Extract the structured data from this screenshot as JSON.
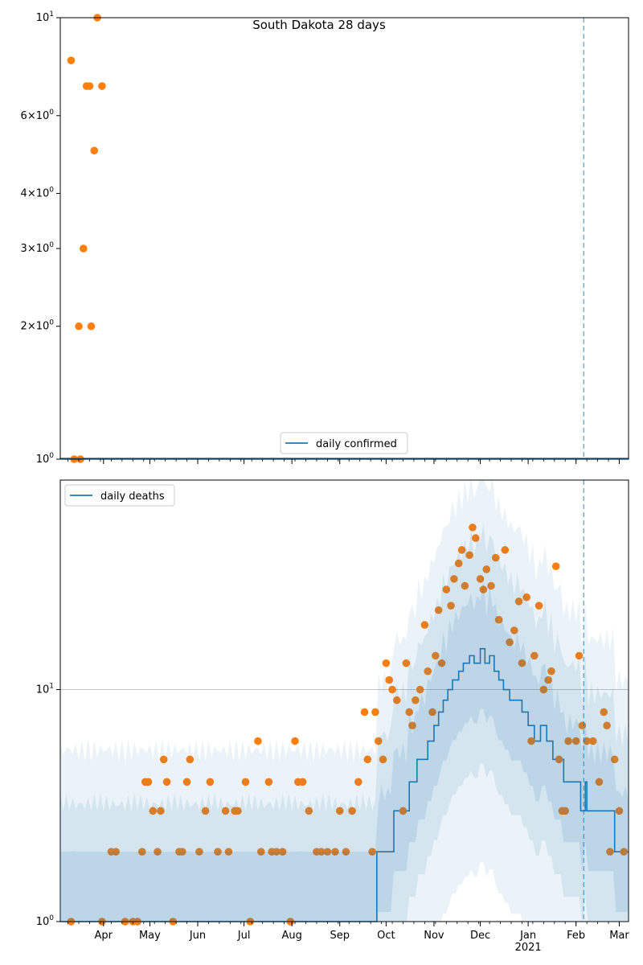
{
  "chart_data": [
    {
      "type": "scatter",
      "title": "South Dakota 28 days",
      "yscale": "log",
      "ylim": [
        1,
        10
      ],
      "x_range": [
        "2020-03-04",
        "2021-03-07"
      ],
      "ytick_labels": [
        {
          "value": 1,
          "base": "10",
          "exp": "0"
        },
        {
          "value": 2,
          "base": "2×10",
          "exp": "0"
        },
        {
          "value": 3,
          "base": "3×10",
          "exp": "0"
        },
        {
          "value": 4,
          "base": "4×10",
          "exp": "0"
        },
        {
          "value": 6,
          "base": "6×10",
          "exp": "0"
        },
        {
          "value": 10,
          "base": "10",
          "exp": "1"
        }
      ],
      "legend": {
        "label": "daily confirmed",
        "placement": "lower-center"
      },
      "reference_line_date": "2021-02-06",
      "series": [
        {
          "role": "observed",
          "color": "#ff7f0e",
          "points": [
            [
              "2020-03-11",
              8
            ],
            [
              "2020-03-13",
              1
            ],
            [
              "2020-03-16",
              2
            ],
            [
              "2020-03-17",
              1
            ],
            [
              "2020-03-19",
              3
            ],
            [
              "2020-03-21",
              7
            ],
            [
              "2020-03-23",
              7
            ],
            [
              "2020-03-24",
              2
            ],
            [
              "2020-03-26",
              5
            ],
            [
              "2020-03-28",
              10
            ],
            [
              "2020-03-31",
              7
            ]
          ]
        }
      ]
    },
    {
      "type": "line",
      "yscale": "log",
      "ylim": [
        1,
        80
      ],
      "x_range": [
        "2020-03-04",
        "2021-03-07"
      ],
      "ytick_labels": [
        {
          "value": 1,
          "base": "10",
          "exp": "0"
        },
        {
          "value": 10,
          "base": "10",
          "exp": "1"
        }
      ],
      "grid": "major horizontal",
      "legend": {
        "label": "daily deaths",
        "placement": "upper-left"
      },
      "reference_line_date": "2021-02-06",
      "xtick_labels": [
        {
          "date": "2020-04-01",
          "label": "Apr"
        },
        {
          "date": "2020-05-01",
          "label": "May"
        },
        {
          "date": "2020-06-01",
          "label": "Jun"
        },
        {
          "date": "2020-07-01",
          "label": "Jul"
        },
        {
          "date": "2020-08-01",
          "label": "Aug"
        },
        {
          "date": "2020-09-01",
          "label": "Sep"
        },
        {
          "date": "2020-10-01",
          "label": "Oct"
        },
        {
          "date": "2020-11-01",
          "label": "Nov"
        },
        {
          "date": "2020-12-01",
          "label": "Dec"
        },
        {
          "date": "2021-01-01",
          "label": "Jan",
          "sub": "2021"
        },
        {
          "date": "2021-02-01",
          "label": "Feb"
        },
        {
          "date": "2021-03-01",
          "label": "Mar"
        }
      ],
      "series": [
        {
          "name": "daily deaths",
          "role": "model",
          "color": "#1f77b4",
          "points": [
            [
              "2020-03-04",
              1
            ],
            [
              "2020-09-24",
              1
            ],
            [
              "2020-09-25",
              2
            ],
            [
              "2020-10-05",
              2
            ],
            [
              "2020-10-06",
              3
            ],
            [
              "2020-10-15",
              3
            ],
            [
              "2020-10-16",
              4
            ],
            [
              "2020-10-20",
              4
            ],
            [
              "2020-10-21",
              5
            ],
            [
              "2020-10-25",
              5
            ],
            [
              "2020-10-28",
              6
            ],
            [
              "2020-11-01",
              7
            ],
            [
              "2020-11-04",
              8
            ],
            [
              "2020-11-07",
              9
            ],
            [
              "2020-11-10",
              10
            ],
            [
              "2020-11-13",
              11
            ],
            [
              "2020-11-17",
              12
            ],
            [
              "2020-11-20",
              13
            ],
            [
              "2020-11-24",
              14
            ],
            [
              "2020-11-27",
              13
            ],
            [
              "2020-12-01",
              15
            ],
            [
              "2020-12-04",
              13
            ],
            [
              "2020-12-07",
              14
            ],
            [
              "2020-12-10",
              12
            ],
            [
              "2020-12-13",
              11
            ],
            [
              "2020-12-16",
              10
            ],
            [
              "2020-12-20",
              9
            ],
            [
              "2020-12-24",
              9
            ],
            [
              "2020-12-28",
              8
            ],
            [
              "2021-01-01",
              7
            ],
            [
              "2021-01-05",
              6
            ],
            [
              "2021-01-09",
              7
            ],
            [
              "2021-01-13",
              6
            ],
            [
              "2021-01-17",
              5
            ],
            [
              "2021-01-21",
              5
            ],
            [
              "2021-01-24",
              4
            ],
            [
              "2021-02-03",
              4
            ],
            [
              "2021-02-04",
              3
            ],
            [
              "2021-02-06",
              3
            ],
            [
              "2021-02-07",
              4
            ],
            [
              "2021-02-08",
              3
            ],
            [
              "2021-02-25",
              3
            ],
            [
              "2021-02-26",
              2
            ],
            [
              "2021-03-07",
              2
            ]
          ]
        },
        {
          "role": "observed",
          "color": "#ff7f0e",
          "points": [
            [
              "2020-03-11",
              1
            ],
            [
              "2020-03-31",
              1
            ],
            [
              "2020-04-06",
              2
            ],
            [
              "2020-04-09",
              2
            ],
            [
              "2020-04-15",
              1
            ],
            [
              "2020-04-20",
              1
            ],
            [
              "2020-04-23",
              1
            ],
            [
              "2020-04-26",
              2
            ],
            [
              "2020-04-28",
              4
            ],
            [
              "2020-04-30",
              4
            ],
            [
              "2020-05-03",
              3
            ],
            [
              "2020-05-06",
              2
            ],
            [
              "2020-05-08",
              3
            ],
            [
              "2020-05-10",
              5
            ],
            [
              "2020-05-12",
              4
            ],
            [
              "2020-05-16",
              1
            ],
            [
              "2020-05-20",
              2
            ],
            [
              "2020-05-22",
              2
            ],
            [
              "2020-05-25",
              4
            ],
            [
              "2020-05-27",
              5
            ],
            [
              "2020-06-02",
              2
            ],
            [
              "2020-06-06",
              3
            ],
            [
              "2020-06-09",
              4
            ],
            [
              "2020-06-14",
              2
            ],
            [
              "2020-06-19",
              3
            ],
            [
              "2020-06-21",
              2
            ],
            [
              "2020-06-25",
              3
            ],
            [
              "2020-06-27",
              3
            ],
            [
              "2020-07-02",
              4
            ],
            [
              "2020-07-05",
              1
            ],
            [
              "2020-07-10",
              6
            ],
            [
              "2020-07-12",
              2
            ],
            [
              "2020-07-17",
              4
            ],
            [
              "2020-07-19",
              2
            ],
            [
              "2020-07-22",
              2
            ],
            [
              "2020-07-26",
              2
            ],
            [
              "2020-07-31",
              1
            ],
            [
              "2020-08-03",
              6
            ],
            [
              "2020-08-05",
              4
            ],
            [
              "2020-08-08",
              4
            ],
            [
              "2020-08-12",
              3
            ],
            [
              "2020-08-17",
              2
            ],
            [
              "2020-08-20",
              2
            ],
            [
              "2020-08-24",
              2
            ],
            [
              "2020-08-29",
              2
            ],
            [
              "2020-09-01",
              3
            ],
            [
              "2020-09-05",
              2
            ],
            [
              "2020-09-09",
              3
            ],
            [
              "2020-09-13",
              4
            ],
            [
              "2020-09-17",
              8
            ],
            [
              "2020-09-19",
              5
            ],
            [
              "2020-09-22",
              2
            ],
            [
              "2020-09-24",
              8
            ],
            [
              "2020-09-26",
              6
            ],
            [
              "2020-09-29",
              5
            ],
            [
              "2020-10-01",
              13
            ],
            [
              "2020-10-03",
              11
            ],
            [
              "2020-10-05",
              10
            ],
            [
              "2020-10-08",
              9
            ],
            [
              "2020-10-12",
              3
            ],
            [
              "2020-10-14",
              13
            ],
            [
              "2020-10-16",
              8
            ],
            [
              "2020-10-18",
              7
            ],
            [
              "2020-10-20",
              9
            ],
            [
              "2020-10-23",
              10
            ],
            [
              "2020-10-26",
              19
            ],
            [
              "2020-10-28",
              12
            ],
            [
              "2020-10-31",
              8
            ],
            [
              "2020-11-02",
              14
            ],
            [
              "2020-11-04",
              22
            ],
            [
              "2020-11-06",
              13
            ],
            [
              "2020-11-09",
              27
            ],
            [
              "2020-11-12",
              23
            ],
            [
              "2020-11-14",
              30
            ],
            [
              "2020-11-17",
              35
            ],
            [
              "2020-11-19",
              40
            ],
            [
              "2020-11-21",
              28
            ],
            [
              "2020-11-24",
              38
            ],
            [
              "2020-11-26",
              50
            ],
            [
              "2020-11-28",
              45
            ],
            [
              "2020-12-01",
              30
            ],
            [
              "2020-12-03",
              27
            ],
            [
              "2020-12-05",
              33
            ],
            [
              "2020-12-08",
              28
            ],
            [
              "2020-12-11",
              37
            ],
            [
              "2020-12-13",
              20
            ],
            [
              "2020-12-17",
              40
            ],
            [
              "2020-12-20",
              16
            ],
            [
              "2020-12-23",
              18
            ],
            [
              "2020-12-26",
              24
            ],
            [
              "2020-12-28",
              13
            ],
            [
              "2020-12-31",
              25
            ],
            [
              "2021-01-03",
              6
            ],
            [
              "2021-01-05",
              14
            ],
            [
              "2021-01-08",
              23
            ],
            [
              "2021-01-11",
              10
            ],
            [
              "2021-01-14",
              11
            ],
            [
              "2021-01-16",
              12
            ],
            [
              "2021-01-19",
              34
            ],
            [
              "2021-01-21",
              5
            ],
            [
              "2021-01-23",
              3
            ],
            [
              "2021-01-25",
              3
            ],
            [
              "2021-01-27",
              6
            ],
            [
              "2021-02-01",
              6
            ],
            [
              "2021-02-03",
              14
            ],
            [
              "2021-02-05",
              7
            ],
            [
              "2021-02-08",
              6
            ],
            [
              "2021-02-12",
              6
            ],
            [
              "2021-02-16",
              4
            ],
            [
              "2021-02-19",
              8
            ],
            [
              "2021-02-21",
              7
            ],
            [
              "2021-02-23",
              2
            ],
            [
              "2021-02-26",
              5
            ],
            [
              "2021-03-01",
              3
            ],
            [
              "2021-03-04",
              2
            ]
          ]
        }
      ]
    }
  ]
}
